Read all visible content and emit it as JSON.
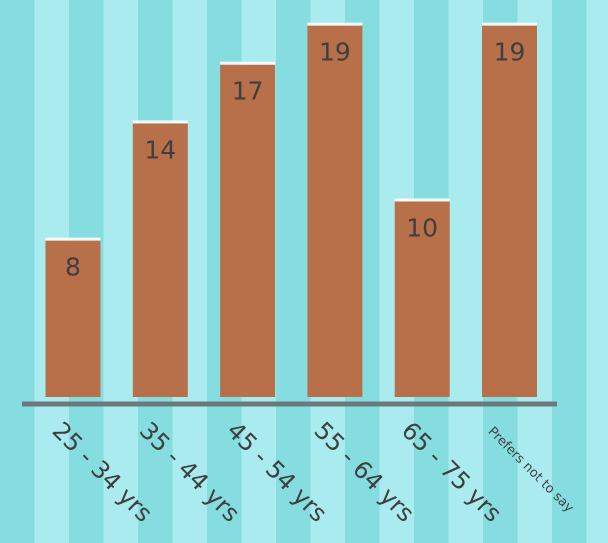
{
  "colors": {
    "stripe_dark": "#86dde0",
    "stripe_light": "#a9ebef",
    "bar_fill": "#b77049",
    "bar_highlight": "#ffffff",
    "axis_line": "#6a7a7c",
    "label_text": "#3f3f3f"
  },
  "chart_data": {
    "type": "bar",
    "categories": [
      "25 - 34 yrs",
      "35 - 44 yrs",
      "45 - 54 yrs",
      "55 - 64 yrs",
      "65 - 75 yrs",
      "Prefers not to say"
    ],
    "values": [
      8,
      14,
      17,
      19,
      10,
      19
    ],
    "data_labels": [
      "8",
      "14",
      "17",
      "19",
      "10",
      "19"
    ],
    "title": "",
    "xlabel": "",
    "ylabel": "",
    "ylim": [
      0,
      19.8
    ],
    "grid": false,
    "legend": "none"
  }
}
